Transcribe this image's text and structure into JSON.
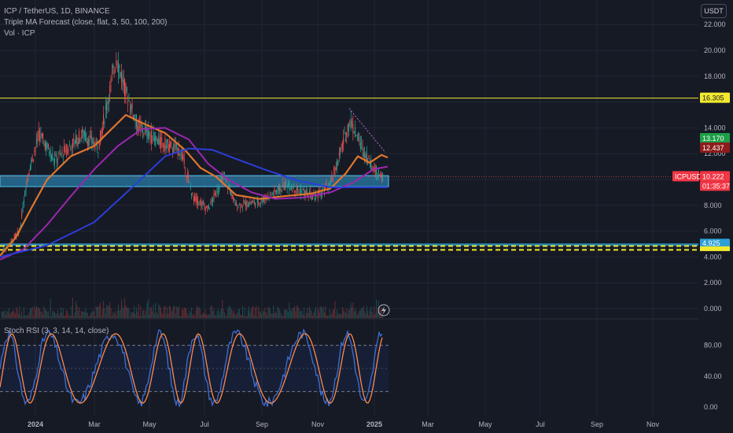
{
  "header": {
    "symbol_line": "ICP / TetherUS, 1D, BINANCE",
    "indicator_line": "Triple MA Forecast (close, flat, 3, 50, 100, 200)",
    "volume_line": "Vol · ICP",
    "currency_button": "USDT"
  },
  "oscillator": {
    "title": "Stoch RSI (3, 3, 14, 14, close)",
    "axis_ticks": [
      "80.00",
      "40.00",
      "0.00"
    ]
  },
  "price_axis": {
    "ticks": [
      "22.000",
      "20.000",
      "18.000",
      "16.305",
      "14.000",
      "13.170",
      "12.437",
      "12.000",
      "10.222",
      "01:35:37",
      "8.000",
      "6.000",
      "4.925",
      "4.000",
      "2.000",
      "0.000"
    ]
  },
  "price_labels": {
    "resistance": "16.305",
    "ma_short": "13.170",
    "ma_mid": "12.437",
    "symbol_tag": "ICPUSDT",
    "last_price": "10.222",
    "countdown": "01:35:37",
    "support": "4.925"
  },
  "time_axis": {
    "labels": [
      "2024",
      "Mar",
      "May",
      "Jul",
      "Sep",
      "Nov",
      "2025",
      "Mar",
      "May",
      "Jul",
      "Sep",
      "Nov"
    ]
  },
  "colors": {
    "background": "#161a25",
    "grid": "#232735",
    "up": "#26a69a",
    "down": "#ef5350",
    "ma_fast": "#e0762e",
    "ma_mid": "#9c27b0",
    "ma_slow": "#2b3ed8",
    "resistance": "#f2ea2f",
    "support_zone": "#2f9fd4",
    "stoch_k": "#3f6fd6",
    "stoch_d": "#ff8a4b"
  },
  "chart_data": {
    "type": "candlestick",
    "price_range": [
      0,
      22
    ],
    "x_labels": [
      "2024",
      "Mar",
      "May",
      "Jul",
      "Sep",
      "Nov",
      "2025",
      "Mar",
      "May",
      "Jul",
      "Sep",
      "Nov"
    ],
    "price_ticks": [
      22,
      20,
      18,
      14,
      12,
      8,
      6,
      4,
      2,
      0
    ],
    "horizontal_levels": {
      "resistance": 16.305,
      "support": 4.925,
      "dashed_support_1": 4.85,
      "dashed_support_2": 4.55,
      "zone_top": 10.3,
      "zone_bottom": 9.45,
      "last_price": 10.222
    },
    "ma_values": {
      "ma_short_last": 13.17,
      "ma_mid_last": 12.437
    },
    "stoch_rsi": {
      "range": [
        0,
        100
      ],
      "upper_band": 80,
      "lower_band": 20,
      "mid_band": 50
    }
  }
}
